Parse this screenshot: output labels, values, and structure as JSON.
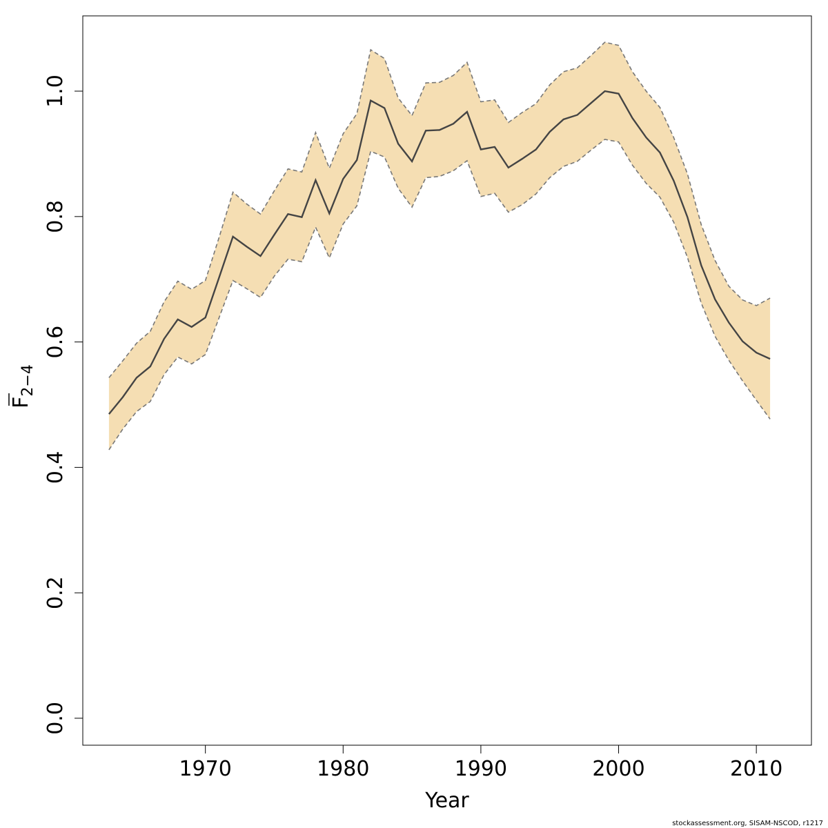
{
  "chart_data": {
    "type": "area",
    "xlabel": "Year",
    "ylabel_main": "F",
    "ylabel_sub": "2−4",
    "x_ticks": [
      1970,
      1980,
      1990,
      2000,
      2010
    ],
    "y_ticks": [
      "0.0",
      "0.2",
      "0.4",
      "0.6",
      "0.8",
      "1.0"
    ],
    "y_tick_values": [
      0.0,
      0.2,
      0.4,
      0.6,
      0.8,
      1.0
    ],
    "xlim": [
      1961.1,
      2014.0
    ],
    "ylim": [
      -0.043,
      1.12
    ],
    "band_color": "#f5deb3",
    "line_color": "#444444",
    "bound_color": "#777777",
    "x": [
      1963,
      1964,
      1965,
      1966,
      1967,
      1968,
      1969,
      1970,
      1971,
      1972,
      1973,
      1974,
      1975,
      1976,
      1977,
      1978,
      1979,
      1980,
      1981,
      1982,
      1983,
      1984,
      1985,
      1986,
      1987,
      1988,
      1989,
      1990,
      1991,
      1992,
      1993,
      1994,
      1995,
      1996,
      1997,
      1998,
      1999,
      2000,
      2001,
      2002,
      2003,
      2004,
      2005,
      2006,
      2007,
      2008,
      2009,
      2010,
      2011
    ],
    "estimate": [
      0.485,
      0.512,
      0.543,
      0.561,
      0.605,
      0.636,
      0.624,
      0.639,
      0.703,
      0.768,
      0.752,
      0.737,
      0.771,
      0.804,
      0.799,
      0.858,
      0.805,
      0.86,
      0.89,
      0.985,
      0.973,
      0.916,
      0.888,
      0.937,
      0.938,
      0.948,
      0.967,
      0.907,
      0.911,
      0.878,
      0.892,
      0.907,
      0.935,
      0.955,
      0.962,
      0.981,
      1.0,
      0.996,
      0.957,
      0.926,
      0.902,
      0.857,
      0.799,
      0.722,
      0.668,
      0.631,
      0.601,
      0.583,
      0.573
    ],
    "lower": [
      0.428,
      0.461,
      0.489,
      0.505,
      0.548,
      0.576,
      0.565,
      0.58,
      0.639,
      0.698,
      0.685,
      0.671,
      0.705,
      0.732,
      0.728,
      0.783,
      0.734,
      0.788,
      0.817,
      0.904,
      0.895,
      0.845,
      0.815,
      0.862,
      0.864,
      0.873,
      0.889,
      0.832,
      0.837,
      0.807,
      0.819,
      0.836,
      0.862,
      0.88,
      0.888,
      0.906,
      0.923,
      0.919,
      0.882,
      0.853,
      0.831,
      0.791,
      0.735,
      0.662,
      0.609,
      0.571,
      0.538,
      0.507,
      0.477
    ],
    "upper": [
      0.543,
      0.57,
      0.598,
      0.617,
      0.664,
      0.697,
      0.684,
      0.698,
      0.767,
      0.839,
      0.82,
      0.804,
      0.841,
      0.876,
      0.871,
      0.934,
      0.877,
      0.932,
      0.964,
      1.066,
      1.052,
      0.989,
      0.961,
      1.013,
      1.014,
      1.025,
      1.046,
      0.983,
      0.986,
      0.95,
      0.966,
      0.98,
      1.01,
      1.031,
      1.037,
      1.057,
      1.078,
      1.073,
      1.031,
      1.0,
      0.974,
      0.926,
      0.868,
      0.787,
      0.73,
      0.689,
      0.667,
      0.658,
      0.67
    ]
  },
  "footer": "stockassessment.org, SISAM-NSCOD, r1217"
}
